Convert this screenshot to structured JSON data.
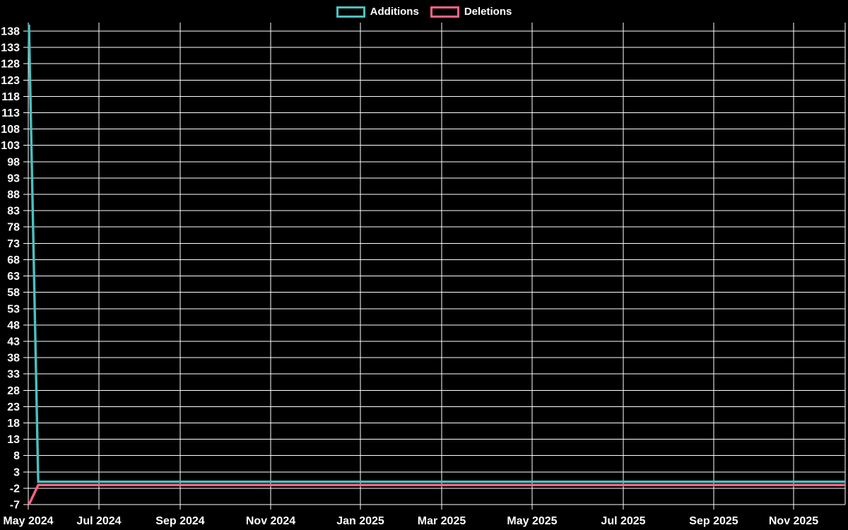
{
  "legend": {
    "items": [
      {
        "label": "Additions",
        "color": "#4bc0c0"
      },
      {
        "label": "Deletions",
        "color": "#ff6384"
      }
    ]
  },
  "chart_data": {
    "type": "line",
    "title": "",
    "background": "#000000",
    "grid": true,
    "legend_position": "top",
    "text_color": "#ffffff",
    "grid_color": "#ffffff",
    "xlabel": "",
    "ylabel": "",
    "x_tick_labels": [
      "May 2024",
      "Jul 2024",
      "Sep 2024",
      "Nov 2024",
      "Jan 2025",
      "Mar 2025",
      "May 2025",
      "Jul 2025",
      "Sep 2025",
      "Nov 2025"
    ],
    "y_tick_values": [
      138,
      133,
      128,
      123,
      118,
      113,
      108,
      103,
      98,
      93,
      88,
      83,
      78,
      73,
      68,
      63,
      58,
      53,
      48,
      43,
      38,
      33,
      28,
      23,
      18,
      13,
      8,
      3,
      -2,
      -7
    ],
    "ylim": [
      -7,
      141
    ],
    "series": [
      {
        "name": "Additions",
        "color": "#4bc0c0",
        "points": [
          {
            "t": 0,
            "v": 140
          },
          {
            "t": 0.0113,
            "v": 0
          },
          {
            "t": 1,
            "v": 0
          }
        ]
      },
      {
        "name": "Deletions",
        "color": "#ff6384",
        "points": [
          {
            "t": 0,
            "v": -7
          },
          {
            "t": 0.0113,
            "v": -1
          },
          {
            "t": 1,
            "v": -1
          }
        ]
      }
    ]
  }
}
